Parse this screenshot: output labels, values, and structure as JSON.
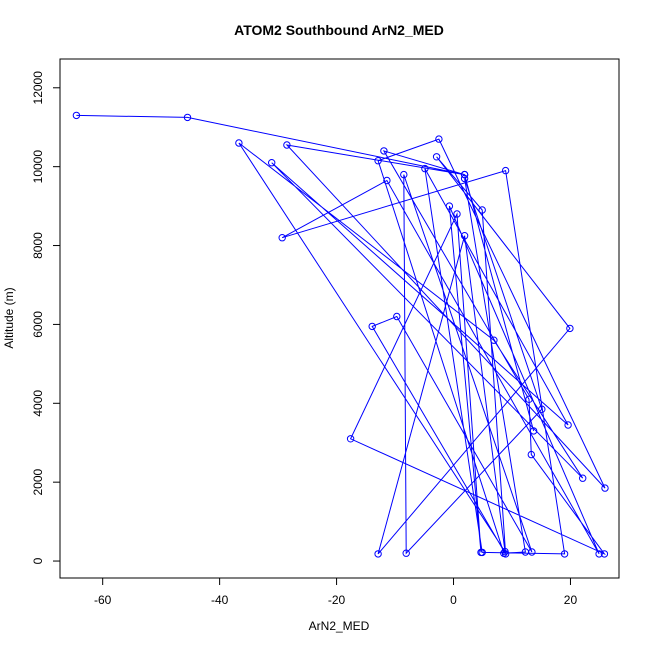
{
  "chart_data": {
    "type": "line",
    "title": "ATOM2 Southbound ArN2_MED",
    "xlabel": "ArN2_MED",
    "ylabel": "Altitude (m)",
    "xlim": [
      -67.3,
      28.3
    ],
    "ylim": [
      -430,
      12730
    ],
    "xticks": [
      -60,
      -40,
      -20,
      0,
      20
    ],
    "xtick_labels": [
      "-60",
      "-40",
      "-20",
      "0",
      "20"
    ],
    "yticks": [
      0,
      2000,
      4000,
      6000,
      8000,
      10000,
      12000
    ],
    "ytick_labels": [
      "0",
      "2000",
      "4000",
      "6000",
      "8000",
      "10000",
      "12000"
    ],
    "line_color": "#0000ff",
    "marker": "open-circle",
    "grid": false,
    "series": [
      {
        "x": [
          -64.5,
          -45.5,
          1.9,
          -28.5,
          25.9,
          -2.5,
          -12.9,
          8.6,
          12.3,
          1.9,
          15.1,
          -8.1,
          -8.5,
          13.4,
          -9.7,
          -13.9,
          8.9,
          4.9,
          -2.9,
          19.9,
          -12.9,
          1.9,
          8.8,
          -36.7,
          6.9,
          22.1,
          -31.1,
          19.6,
          -4.9,
          4.9,
          19.0,
          8.9,
          -29.3,
          -11.4,
          24.9,
          -0.7,
          4.7,
          0.6,
          -17.6,
          25.8,
          13.3,
          12.9,
          -11.9,
          1.9,
          13.7
        ],
        "y": [
          11300,
          11250,
          9800,
          10550,
          1850,
          10700,
          10150,
          200,
          230,
          9700,
          3850,
          200,
          9800,
          230,
          6200,
          5950,
          180,
          8900,
          10250,
          5900,
          180,
          8250,
          240,
          10600,
          5600,
          2100,
          10100,
          3450,
          9950,
          220,
          180,
          9900,
          8200,
          9650,
          180,
          9000,
          220,
          8800,
          3100,
          180,
          2700,
          4100,
          10400,
          9800,
          3300
        ]
      }
    ]
  }
}
